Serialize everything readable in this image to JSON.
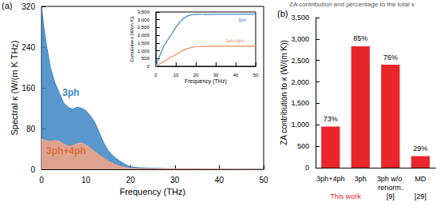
{
  "chart_data": [
    {
      "type": "area",
      "panel_label": "(a)",
      "x_label": "Frequency (THz)",
      "y_label": "Spectral κ (W/(m K THz)",
      "x": [
        0,
        0.5,
        1,
        2,
        3,
        4,
        5,
        6,
        7,
        8,
        9,
        10,
        11,
        12,
        13,
        14,
        15,
        16,
        17,
        18,
        19,
        20,
        22,
        25,
        30,
        35,
        40,
        45,
        50
      ],
      "series": [
        {
          "name": "3ph",
          "color": "#3d85c6",
          "values": [
            320,
            280,
            250,
            200,
            170,
            150,
            130,
            122,
            118,
            122,
            120,
            115,
            105,
            92,
            72,
            52,
            37,
            27,
            20,
            14,
            9,
            5,
            3,
            2,
            1,
            1,
            0.5,
            0.3,
            0.2
          ]
        },
        {
          "name": "3ph+4ph",
          "color": "#f4a582",
          "values": [
            60,
            58,
            56,
            55,
            57,
            55,
            50,
            45,
            47,
            50,
            52,
            48,
            42,
            35,
            28,
            22,
            16,
            12,
            8,
            5,
            3,
            2,
            1,
            1,
            0.5,
            0.4,
            0.3,
            0.2,
            0.1
          ]
        }
      ],
      "xlim": [
        0,
        50
      ],
      "xticks": [
        0,
        10,
        20,
        30,
        40,
        50
      ],
      "ylim": [
        0,
        320
      ],
      "yticks": [
        0,
        80,
        160,
        240,
        320
      ],
      "grid": false
    },
    {
      "type": "line",
      "x_label": "Frequency (THz)",
      "y_label": "Cumulative κ (W/(m K))",
      "x": [
        0,
        2,
        4,
        6,
        8,
        10,
        12,
        14,
        16,
        18,
        20,
        30,
        40,
        50
      ],
      "series": [
        {
          "name": "3ph",
          "color": "#3d85c6",
          "values": [
            0,
            700,
            1300,
            1700,
            2100,
            2500,
            2850,
            3100,
            3250,
            3320,
            3340,
            3350,
            3350,
            3350
          ]
        },
        {
          "name": "3ph+4ph",
          "color": "#f08c5a",
          "values": [
            0,
            150,
            300,
            450,
            600,
            750,
            900,
            1050,
            1150,
            1220,
            1260,
            1290,
            1290,
            1290
          ]
        }
      ],
      "xlim": [
        0,
        50
      ],
      "xticks": [
        0,
        10,
        20,
        30,
        40,
        50
      ],
      "ylim": [
        0,
        3500
      ],
      "yticks": [
        0,
        500,
        1000,
        1500,
        2000,
        2500,
        3000,
        3500
      ],
      "grid": false
    },
    {
      "type": "bar",
      "panel_label": "(b)",
      "title": "ZA contribution and percentage to the total κ",
      "y_label": "ZA contribution to κ (W/(m K))",
      "categories": [
        "3ph+4ph",
        "3ph",
        "3ph w/o renorm.",
        "MD"
      ],
      "values": [
        960,
        2830,
        2400,
        270
      ],
      "percentage_labels": [
        "73%",
        "85%",
        "76%",
        "29%"
      ],
      "source_groups": [
        {
          "label": "This work",
          "categories": [
            "3ph+4ph",
            "3ph"
          ]
        },
        {
          "label": "[9]",
          "categories": [
            "3ph w/o renorm."
          ]
        },
        {
          "label": "[29]",
          "categories": [
            "MD"
          ]
        }
      ],
      "color": "#e8262b",
      "ylim": [
        0,
        3500
      ],
      "yticks": [
        0,
        500,
        1000,
        1500,
        2000,
        2500,
        3000,
        3500
      ],
      "grid": false
    }
  ]
}
